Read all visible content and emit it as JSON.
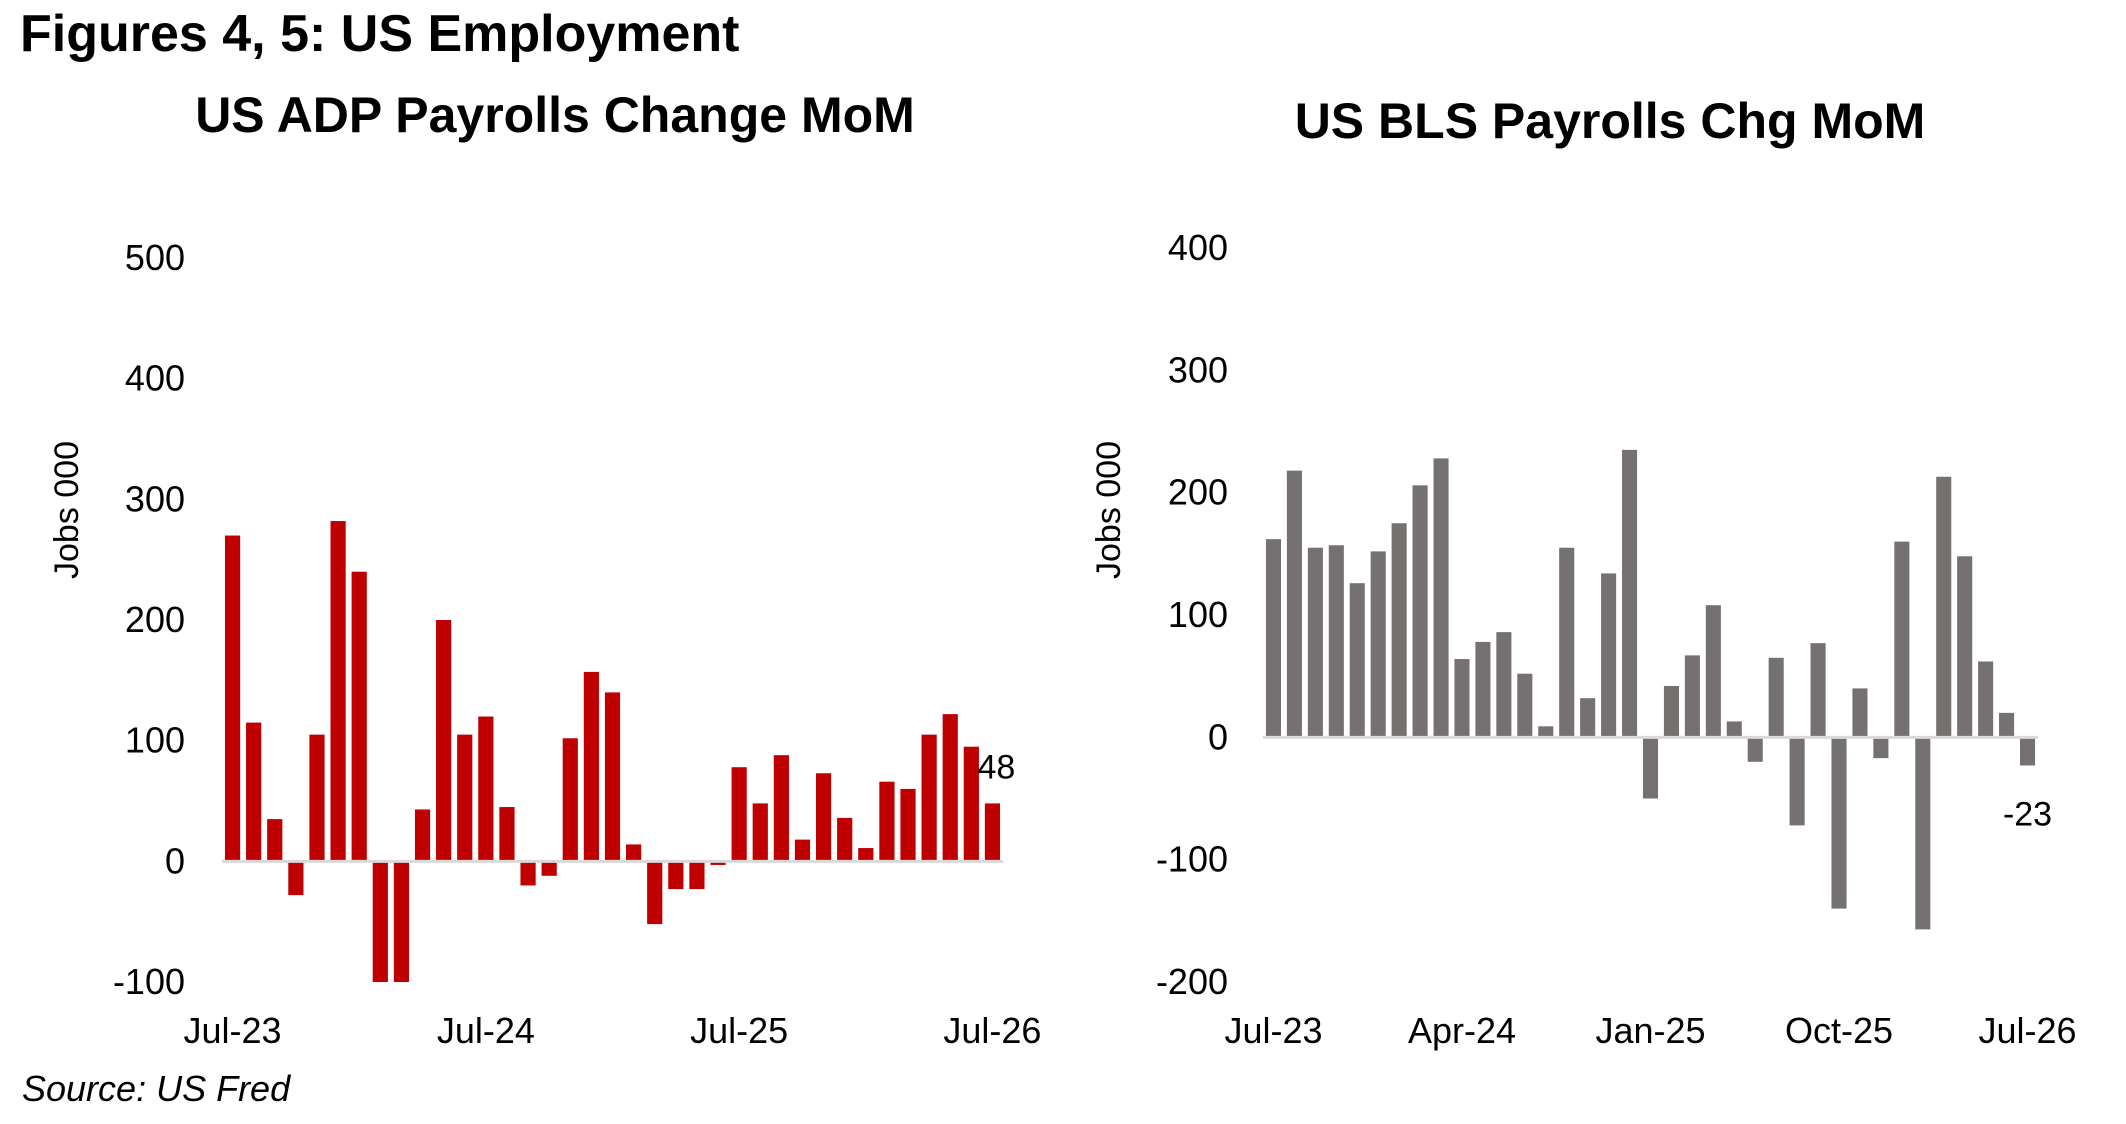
{
  "header": {
    "title": "Figures 4, 5: US Employment"
  },
  "footer": {
    "source": "Source: US Fred"
  },
  "chart_data": [
    {
      "type": "bar",
      "title": "US ADP Payrolls Change MoM",
      "xlabel": "",
      "ylabel": "Jobs 000",
      "ylim": [
        -100,
        500
      ],
      "yticks": [
        -100,
        0,
        100,
        200,
        300,
        400,
        500
      ],
      "grid": false,
      "color": "#c00000",
      "x_tick_labels": [
        "Jul-23",
        "Jul-24",
        "Jul-25",
        "Jul-26"
      ],
      "x_tick_indices": [
        0,
        12,
        24,
        36
      ],
      "values": [
        270,
        115,
        35,
        -28,
        105,
        282,
        240,
        -100,
        -100,
        43,
        200,
        105,
        120,
        45,
        -20,
        -12,
        102,
        157,
        140,
        14,
        -52,
        -23,
        -23,
        -3,
        78,
        48,
        88,
        18,
        73,
        36,
        11,
        66,
        60,
        105,
        122,
        95,
        48
      ],
      "annotation": {
        "index": 36,
        "text": "48"
      }
    },
    {
      "type": "bar",
      "title": "US BLS Payrolls Chg MoM",
      "xlabel": "",
      "ylabel": "Jobs 000",
      "ylim": [
        -200,
        400
      ],
      "yticks": [
        -200,
        -100,
        0,
        100,
        200,
        300,
        400
      ],
      "grid": false,
      "color": "#767171",
      "x_tick_labels": [
        "Jul-23",
        "Apr-24",
        "Jan-25",
        "Oct-25",
        "Jul-26"
      ],
      "x_tick_indices": [
        0,
        9,
        18,
        27,
        36
      ],
      "values": [
        162,
        218,
        155,
        157,
        126,
        152,
        175,
        206,
        228,
        64,
        78,
        86,
        52,
        9,
        155,
        32,
        134,
        235,
        -50,
        42,
        67,
        108,
        13,
        -20,
        65,
        -72,
        77,
        -140,
        40,
        -17,
        160,
        -157,
        213,
        148,
        62,
        20,
        -23
      ],
      "annotation": {
        "index": 36,
        "text": "-23"
      }
    }
  ]
}
